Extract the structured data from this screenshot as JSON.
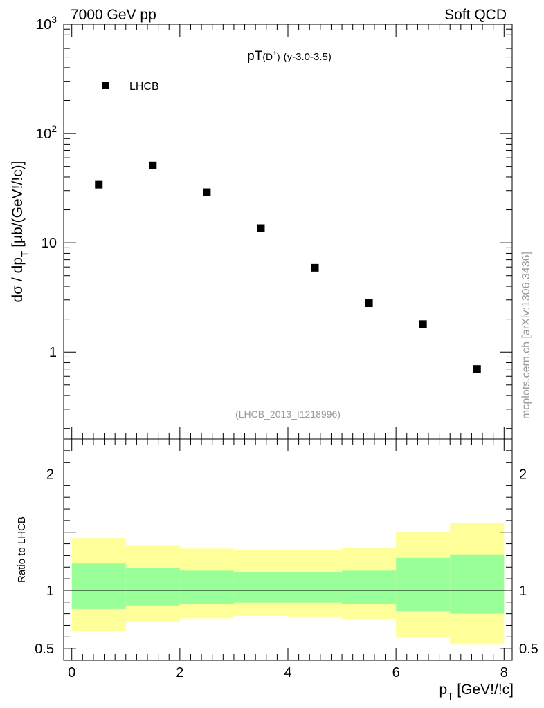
{
  "header": {
    "energy_label": "7000 GeV pp",
    "category_label": "Soft QCD"
  },
  "side_label": "mcplots.cern.ch [arXiv:1306.3436]",
  "colors": {
    "band_outer": "#ffff99",
    "band_inner": "#99ff99",
    "marker": "#000000",
    "watermark": "#999999"
  },
  "chart_data": [
    {
      "type": "scatter",
      "title_main": "pT",
      "title_particle": "(D",
      "title_charge": "+",
      "title_close": ")",
      "title_range": "(y-3.0-3.5)",
      "ylabel": "dσ / dp",
      "ylabel_sub": "T",
      "ylabel_units": "[μb/(GeV!/!c)]",
      "yscale": "log",
      "ylim": [
        0.16,
        1000
      ],
      "xlim": [
        -0.15,
        8.15
      ],
      "y_ticks": [
        {
          "value": 1000,
          "base": "10",
          "exp": "3"
        },
        {
          "value": 100,
          "base": "10",
          "exp": "2"
        },
        {
          "value": 10,
          "base": "10",
          "exp": ""
        },
        {
          "value": 1,
          "base": "1",
          "exp": ""
        }
      ],
      "legend": [
        {
          "name": "LHCB",
          "marker": "square"
        }
      ],
      "legend_position": "top-left",
      "annotation": "(LHCB_2013_I1218996)",
      "series": [
        {
          "name": "LHCB",
          "x": [
            0.5,
            1.5,
            2.5,
            3.5,
            4.5,
            5.5,
            6.5,
            7.5
          ],
          "y": [
            34,
            51,
            29,
            13.6,
            5.9,
            2.8,
            1.8,
            0.7
          ]
        }
      ]
    },
    {
      "type": "area",
      "ylabel": "Ratio to LHCB",
      "xlabel": "p",
      "xlabel_sub": "T",
      "xlabel_units": "[GeV!/!c]",
      "ylim": [
        0.4,
        2.3
      ],
      "xlim": [
        -0.15,
        8.15
      ],
      "y_ticks": [
        {
          "value": 2,
          "label": "2"
        },
        {
          "value": 1,
          "label": "1"
        },
        {
          "value": 0.5,
          "label": "0.5"
        }
      ],
      "x_ticks": [
        {
          "value": 0,
          "label": "0"
        },
        {
          "value": 2,
          "label": "2"
        },
        {
          "value": 4,
          "label": "4"
        },
        {
          "value": 6,
          "label": "6"
        },
        {
          "value": 8,
          "label": "8"
        }
      ],
      "reference_line": 1,
      "bins": [
        {
          "lo": 0,
          "hi": 1,
          "outer": [
            0.65,
            1.45
          ],
          "inner": [
            0.84,
            1.23
          ]
        },
        {
          "lo": 1,
          "hi": 2,
          "outer": [
            0.73,
            1.39
          ],
          "inner": [
            0.87,
            1.19
          ]
        },
        {
          "lo": 2,
          "hi": 3,
          "outer": [
            0.76,
            1.36
          ],
          "inner": [
            0.885,
            1.17
          ]
        },
        {
          "lo": 3,
          "hi": 4,
          "outer": [
            0.78,
            1.345
          ],
          "inner": [
            0.895,
            1.16
          ]
        },
        {
          "lo": 4,
          "hi": 5,
          "outer": [
            0.775,
            1.35
          ],
          "inner": [
            0.895,
            1.16
          ]
        },
        {
          "lo": 5,
          "hi": 6,
          "outer": [
            0.755,
            1.365
          ],
          "inner": [
            0.885,
            1.17
          ]
        },
        {
          "lo": 6,
          "hi": 7,
          "outer": [
            0.595,
            1.5
          ],
          "inner": [
            0.82,
            1.28
          ]
        },
        {
          "lo": 7,
          "hi": 8,
          "outer": [
            0.535,
            1.58
          ],
          "inner": [
            0.8,
            1.31
          ]
        }
      ]
    }
  ]
}
